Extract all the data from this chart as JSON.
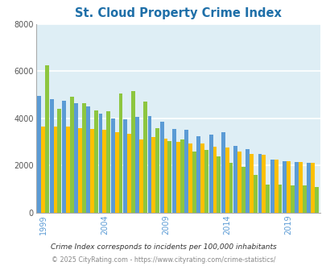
{
  "title": "St. Cloud Property Crime Index",
  "years": [
    1999,
    2000,
    2001,
    2002,
    2003,
    2004,
    2005,
    2006,
    2007,
    2008,
    2009,
    2010,
    2011,
    2012,
    2013,
    2014,
    2015,
    2016,
    2017,
    2018,
    2019,
    2020,
    2021
  ],
  "st_cloud": [
    6250,
    4400,
    4900,
    4650,
    4350,
    4300,
    5050,
    5150,
    4700,
    3600,
    3050,
    3100,
    2600,
    2650,
    2400,
    2100,
    1950,
    1600,
    1200,
    1200,
    1150,
    1150,
    1100
  ],
  "florida": [
    4950,
    4800,
    4750,
    4650,
    4500,
    4200,
    4000,
    3950,
    4050,
    4100,
    3850,
    3550,
    3500,
    3250,
    3300,
    3400,
    2850,
    2700,
    2500,
    2250,
    2200,
    2150,
    2100
  ],
  "national": [
    3650,
    3650,
    3650,
    3600,
    3550,
    3500,
    3400,
    3350,
    3100,
    3200,
    3150,
    3000,
    2950,
    2950,
    2800,
    2750,
    2600,
    2500,
    2450,
    2250,
    2200,
    2150,
    2100
  ],
  "st_cloud_color": "#8dc63f",
  "florida_color": "#5b9bd5",
  "national_color": "#ffc000",
  "bg_color": "#deeef5",
  "title_color": "#1e6fa8",
  "grid_color": "#ffffff",
  "axis_tick_color": "#5b9bd5",
  "footnote1": "Crime Index corresponds to incidents per 100,000 inhabitants",
  "footnote2": "© 2025 CityRating.com - https://www.cityrating.com/crime-statistics/",
  "xtick_years": [
    1999,
    2004,
    2009,
    2014,
    2019
  ],
  "ylim": [
    0,
    8000
  ],
  "yticks": [
    0,
    2000,
    4000,
    6000,
    8000
  ]
}
